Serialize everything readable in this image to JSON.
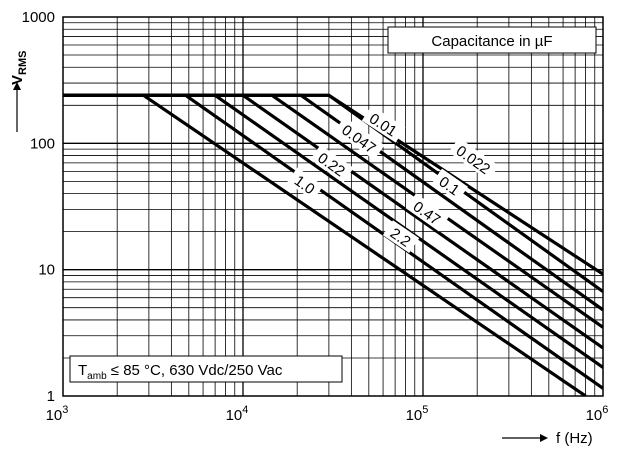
{
  "chart_data": {
    "type": "line",
    "title": "",
    "xlabel": "f (Hz)",
    "ylabel_main": "V",
    "ylabel_sub": "RMS",
    "x_scale": "log",
    "y_scale": "log",
    "xlim": [
      1000,
      1000000
    ],
    "ylim": [
      1,
      1000
    ],
    "grid": true,
    "x_ticks": [
      {
        "base": "10",
        "exp": "3",
        "value": 1000
      },
      {
        "base": "10",
        "exp": "4",
        "value": 10000
      },
      {
        "base": "10",
        "exp": "5",
        "value": 100000
      },
      {
        "base": "10",
        "exp": "6",
        "value": 1000000
      }
    ],
    "y_ticks": [
      {
        "label": "1",
        "value": 1
      },
      {
        "label": "10",
        "value": 10
      },
      {
        "label": "100",
        "value": 100
      },
      {
        "label": "1000",
        "value": 1000
      }
    ],
    "legend_title": "Capacitance in µF",
    "condition_note": {
      "pre": "T",
      "sub": "amb",
      "post": " ≤ 85 °C, 630 Vdc/250 Vac"
    },
    "series": [
      {
        "name": "0.01",
        "points": [
          [
            1000,
            240
          ],
          [
            30000,
            240
          ],
          [
            1000000,
            9.2
          ]
        ],
        "label_at": [
          60000,
          140
        ]
      },
      {
        "name": "0.022",
        "points": [
          [
            1000,
            240
          ],
          [
            30000,
            240
          ],
          [
            1000000,
            6.7
          ]
        ],
        "label_at": [
          190000,
          74
        ]
      },
      {
        "name": "0.047",
        "points": [
          [
            1000,
            240
          ],
          [
            21000,
            240
          ],
          [
            1000000,
            4.8
          ]
        ],
        "label_at": [
          44000,
          108
        ]
      },
      {
        "name": "0.1",
        "points": [
          [
            1000,
            240
          ],
          [
            14500,
            240
          ],
          [
            1000000,
            3.5
          ]
        ],
        "label_at": [
          140000,
          46
        ]
      },
      {
        "name": "0.22",
        "points": [
          [
            1000,
            240
          ],
          [
            10000,
            240
          ],
          [
            1000000,
            2.4
          ]
        ],
        "label_at": [
          31000,
          68
        ]
      },
      {
        "name": "0.47",
        "points": [
          [
            1000,
            240
          ],
          [
            7000,
            240
          ],
          [
            1000000,
            1.68
          ]
        ],
        "label_at": [
          105000,
          28
        ]
      },
      {
        "name": "1.0",
        "points": [
          [
            1000,
            240
          ],
          [
            4800,
            240
          ],
          [
            1000000,
            1.15
          ]
        ],
        "label_at": [
          22000,
          47
        ]
      },
      {
        "name": "2.2",
        "points": [
          [
            1000,
            240
          ],
          [
            2800,
            240
          ],
          [
            800000,
            1.0
          ]
        ],
        "label_at": [
          75000,
          18
        ]
      }
    ]
  }
}
